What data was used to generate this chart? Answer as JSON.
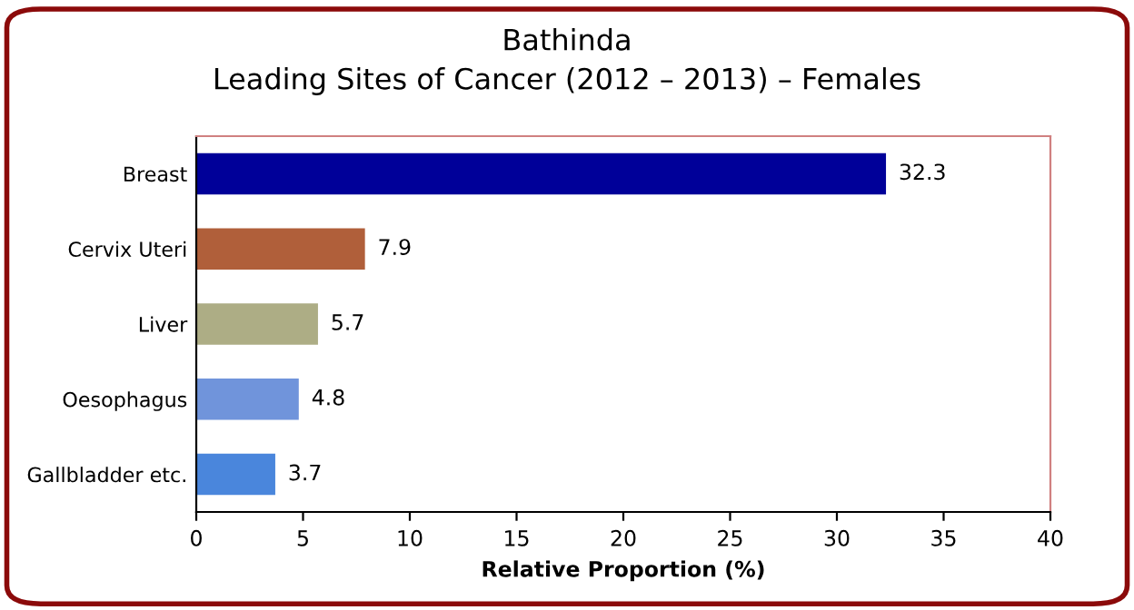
{
  "chart_data": {
    "type": "bar",
    "orientation": "horizontal",
    "title": "Bathinda\nLeading Sites of Cancer (2012 – 2013) – Females",
    "xlabel": "Relative Proportion (%)",
    "categories": [
      "Breast",
      "Cervix Uteri",
      "Liver",
      "Oesophagus",
      "Gallbladder etc."
    ],
    "values": [
      32.3,
      7.9,
      5.7,
      4.8,
      3.7
    ],
    "colors": [
      "#000099",
      "#b05f3a",
      "#adad85",
      "#7094db",
      "#4a86dc"
    ],
    "data_labels": true,
    "xlim": [
      0,
      40
    ],
    "xticks": [
      0,
      5,
      10,
      15,
      20,
      25,
      30,
      35,
      40
    ],
    "grid": false,
    "legend": false
  }
}
